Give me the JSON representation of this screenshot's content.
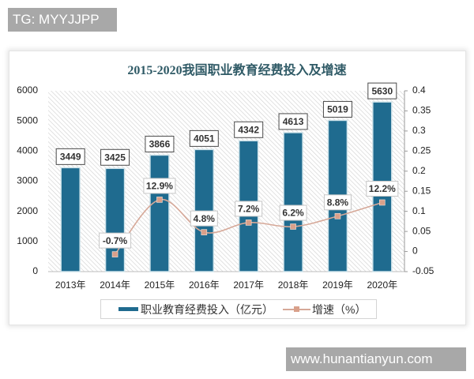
{
  "watermarks": {
    "top": "TG: MYYJJPP",
    "bottom": "www.hunantianyun.com"
  },
  "colors": {
    "bar": "#1f6b8f",
    "bar_outline": "#cfe3ea",
    "line": "#d6a898",
    "marker": "#d9a08a",
    "title": "#2f5a66",
    "hatch": "#cfcfcf"
  },
  "chart_data": {
    "type": "bar",
    "title": "2015-2020我国职业教育经费投入及增速",
    "categories": [
      "2013年",
      "2014年",
      "2015年",
      "2016年",
      "2017年",
      "2018年",
      "2019年",
      "2020年"
    ],
    "series": [
      {
        "name": "职业教育经费投入（亿元）",
        "type": "bar",
        "axis": "left",
        "values": [
          3449,
          3425,
          3866,
          4051,
          4342,
          4613,
          5019,
          5630
        ],
        "labels": [
          "3449",
          "3425",
          "3866",
          "4051",
          "4342",
          "4613",
          "5019",
          "5630"
        ]
      },
      {
        "name": "增速（%）",
        "type": "line",
        "axis": "right",
        "values": [
          null,
          -0.007,
          0.129,
          0.048,
          0.072,
          0.062,
          0.088,
          0.122
        ],
        "labels": [
          null,
          "-0.7%",
          "12.9%",
          "4.8%",
          "7.2%",
          "6.2%",
          "8.8%",
          "12.2%"
        ]
      }
    ],
    "xlabel": "",
    "ylabel": "",
    "ylim": [
      0,
      6000
    ],
    "yticks": [
      "0",
      "1000",
      "2000",
      "3000",
      "4000",
      "5000",
      "6000"
    ],
    "y2lim": [
      -0.05,
      0.4
    ],
    "y2ticks": [
      "-0.05",
      "0",
      "0.05",
      "0.1",
      "0.15",
      "0.2",
      "0.25",
      "0.3",
      "0.35",
      "0.4"
    ],
    "grid": false,
    "legend_position": "bottom"
  }
}
